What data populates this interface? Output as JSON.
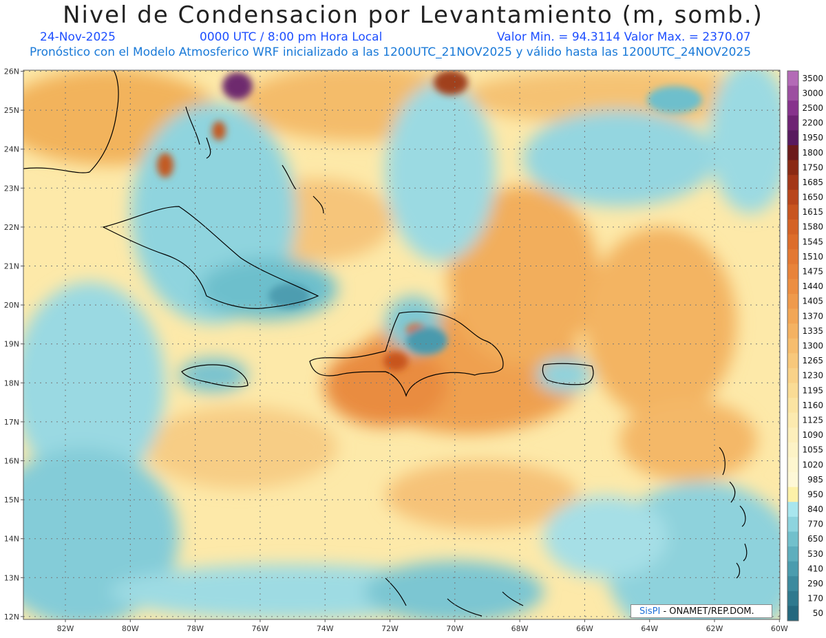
{
  "title": "Nivel de Condensacion por Levantamiento (m, somb.)",
  "date": "24-Nov-2025",
  "time": "0000 UTC / 8:00 pm Hora Local",
  "minmax": "Valor Min. = 94.3114   Valor Max. = 2370.07",
  "description": "Pronóstico con el Modelo Atmosferico WRF inicializado a las 1200UTC_21NOV2025 y válido hasta las  1200UTC_24NOV2025",
  "credit": {
    "brand": "SisPI",
    "text": " - ONAMET/REP.DOM."
  },
  "lat_labels": [
    "26N",
    "25N",
    "24N",
    "23N",
    "22N",
    "21N",
    "20N",
    "19N",
    "18N",
    "17N",
    "16N",
    "15N",
    "14N",
    "13N",
    "12N"
  ],
  "lon_labels": [
    "82W",
    "80W",
    "78W",
    "76W",
    "74W",
    "72W",
    "70W",
    "68W",
    "66W",
    "64W",
    "62W",
    "60W"
  ],
  "colorbar": {
    "levels": [
      "3500",
      "3000",
      "2500",
      "2200",
      "1950",
      "1800",
      "1750",
      "1685",
      "1650",
      "1615",
      "1580",
      "1545",
      "1510",
      "1475",
      "1440",
      "1405",
      "1370",
      "1335",
      "1300",
      "1265",
      "1230",
      "1195",
      "1160",
      "1125",
      "1090",
      "1055",
      "1020",
      "985",
      "950",
      "840",
      "770",
      "650",
      "530",
      "410",
      "290",
      "170",
      "50"
    ],
    "colors": [
      "#b36ab6",
      "#9c4fa0",
      "#87338c",
      "#6e2373",
      "#581a5e",
      "#6b1a1a",
      "#8a2a14",
      "#a33718",
      "#b8461c",
      "#c85520",
      "#d46226",
      "#dd6d2b",
      "#e37833",
      "#e8833a",
      "#ec8e42",
      "#ef9a4c",
      "#f2a656",
      "#f4b262",
      "#f6bd6e",
      "#f8c87b",
      "#f9d288",
      "#fadc95",
      "#fbe4a2",
      "#fceaaf",
      "#fdefbb",
      "#fdf3c6",
      "#fef6cf",
      "#fef8d7",
      "#fdf1a8",
      "#a8e6ee",
      "#8dd4de",
      "#72c0cc",
      "#5eaebd",
      "#4b9cae",
      "#3c8a9e",
      "#2f798e",
      "#24687e"
    ]
  }
}
